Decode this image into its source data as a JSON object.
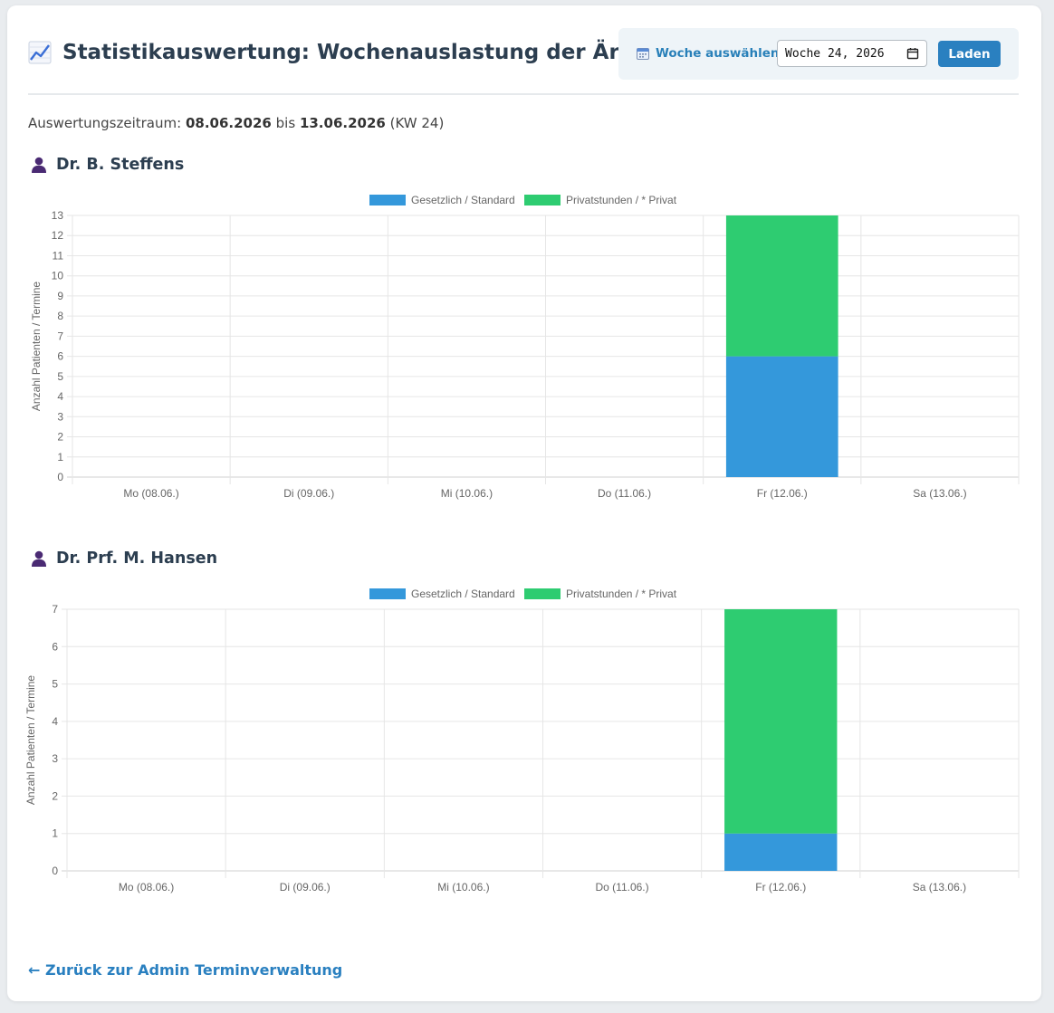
{
  "header": {
    "title": "Statistikauswertung: Wochenauslastung der Ärzte",
    "title_icon": "chart-increasing-icon",
    "week_label": "Woche auswählen:",
    "week_value": "Woche 24, 2026",
    "load_label": "Laden"
  },
  "period": {
    "prefix": "Auswertungszeitraum:",
    "start": "08.06.2026",
    "middle": "bis",
    "end": "13.06.2026",
    "suffix": "(KW 24)"
  },
  "back_link": "← Zurück zur Admin Terminverwaltung",
  "colors": {
    "standard": "#3498db",
    "private": "#2ecc71",
    "accent": "#2a80c0"
  },
  "chart_data": [
    {
      "type": "bar",
      "stacked": true,
      "doctor": "Dr. B. Steffens",
      "categories": [
        "Mo (08.06.)",
        "Di (09.06.)",
        "Mi (10.06.)",
        "Do (11.06.)",
        "Fr (12.06.)",
        "Sa (13.06.)"
      ],
      "series": [
        {
          "name": "Gesetzlich / Standard",
          "color": "#3498db",
          "values": [
            0,
            0,
            0,
            0,
            6,
            0
          ]
        },
        {
          "name": "Privatstunden / * Privat",
          "color": "#2ecc71",
          "values": [
            0,
            0,
            0,
            0,
            7,
            0
          ]
        }
      ],
      "ylabel": "Anzahl Patienten / Termine",
      "ylim": [
        0,
        13
      ],
      "legend": "top-center",
      "grid": true
    },
    {
      "type": "bar",
      "stacked": true,
      "doctor": "Dr. Prf. M. Hansen",
      "categories": [
        "Mo (08.06.)",
        "Di (09.06.)",
        "Mi (10.06.)",
        "Do (11.06.)",
        "Fr (12.06.)",
        "Sa (13.06.)"
      ],
      "series": [
        {
          "name": "Gesetzlich / Standard",
          "color": "#3498db",
          "values": [
            0,
            0,
            0,
            0,
            1,
            0
          ]
        },
        {
          "name": "Privatstunden / * Privat",
          "color": "#2ecc71",
          "values": [
            0,
            0,
            0,
            0,
            6,
            0
          ]
        }
      ],
      "ylabel": "Anzahl Patienten / Termine",
      "ylim": [
        0,
        7
      ],
      "legend": "top-center",
      "grid": true
    }
  ]
}
